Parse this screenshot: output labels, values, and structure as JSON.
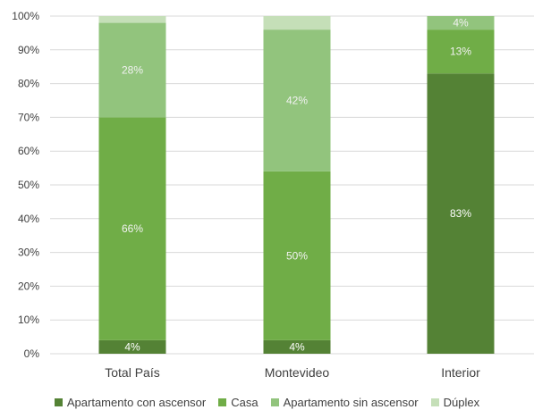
{
  "chart_data": {
    "type": "bar",
    "stacked": true,
    "categories": [
      "Total País",
      "Montevideo",
      "Interior"
    ],
    "series": [
      {
        "name": "Apartamento con ascensor",
        "values": [
          4,
          4,
          83
        ],
        "labels": [
          "4%",
          "4%",
          "83%"
        ],
        "color": "#548235"
      },
      {
        "name": "Casa",
        "values": [
          66,
          50,
          13
        ],
        "labels": [
          "66%",
          "50%",
          "13%"
        ],
        "color": "#70ad47"
      },
      {
        "name": "Apartamento sin ascensor",
        "values": [
          28,
          42,
          4
        ],
        "labels": [
          "28%",
          "42%",
          "4%"
        ],
        "color": "#92c47d"
      },
      {
        "name": "Dúplex",
        "values": [
          2,
          4,
          0
        ],
        "labels": [
          "",
          "",
          ""
        ],
        "color": "#c5dfb8"
      }
    ],
    "yticks": [
      "0%",
      "10%",
      "20%",
      "30%",
      "40%",
      "50%",
      "60%",
      "70%",
      "80%",
      "90%",
      "100%"
    ],
    "ylim": [
      0,
      100
    ],
    "grid": true,
    "legend_position": "bottom"
  }
}
